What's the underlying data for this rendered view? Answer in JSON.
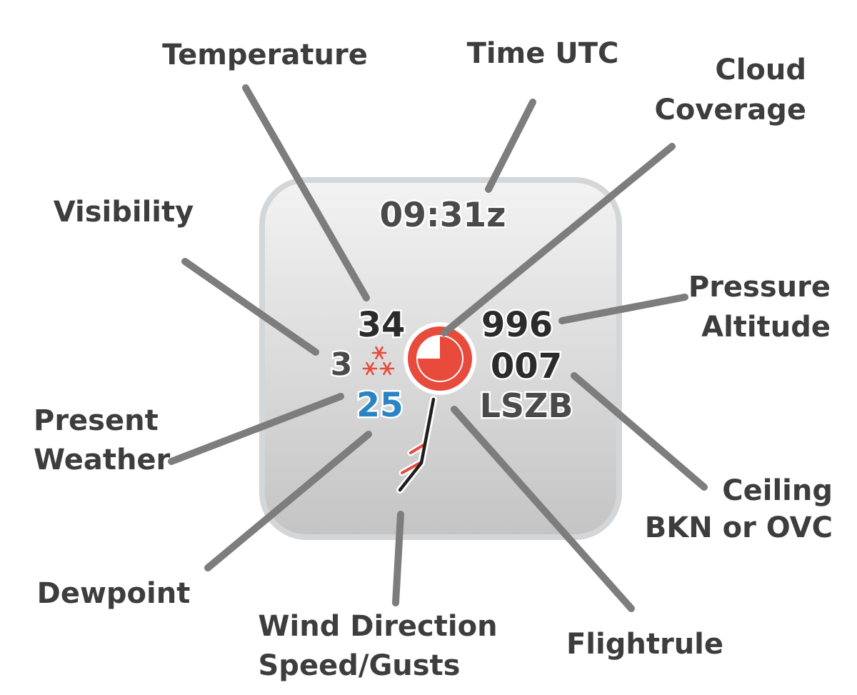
{
  "station_model": {
    "time_utc": "09:31z",
    "temperature": "34",
    "dewpoint": "25",
    "visibility": "3",
    "pressure": "996",
    "ceiling": "007",
    "station_id": "LSZB",
    "present_weather_symbol": "snow-showers-icon",
    "cloud_coverage": "broken (3/4)",
    "colors": {
      "panel_top": "#f2f2f2",
      "panel_bottom": "#c6c6c6",
      "panel_border": "#d3d7da",
      "text_dark": "#2b2b2b",
      "text_grey": "#4a4a4a",
      "dewpoint_blue": "#2a84c4",
      "flightrule_red": "#e84a3c",
      "leader_line": "#7d7d7d"
    }
  },
  "callouts": {
    "temperature": "Temperature",
    "time_utc": "Time UTC",
    "cloud_coverage_line1": "Cloud",
    "cloud_coverage_line2": "Coverage",
    "visibility": "Visibility",
    "pressure_line1": "Pressure",
    "pressure_line2": "Altitude",
    "present_weather_line1": "Present",
    "present_weather_line2": "Weather",
    "ceiling_line1": "Ceiling",
    "ceiling_line2": "BKN or OVC",
    "dewpoint": "Dewpoint",
    "wind_line1": "Wind Direction",
    "wind_line2": "Speed/Gusts",
    "flightrule": "Flightrule"
  }
}
